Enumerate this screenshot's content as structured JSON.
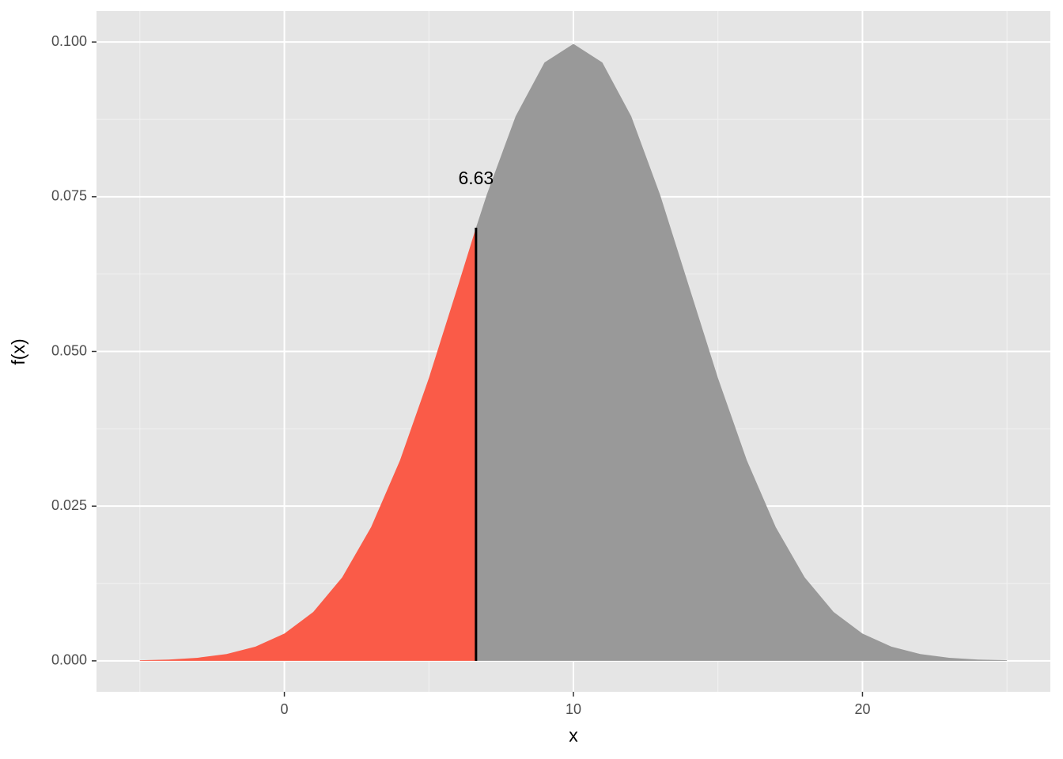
{
  "chart_data": {
    "type": "area",
    "x_label": "x",
    "y_label": "f(x)",
    "series": [
      {
        "color": "#fa5b48",
        "x": [
          -5,
          -4,
          -3,
          -2,
          -1,
          0,
          1,
          2,
          3,
          4,
          5,
          6,
          6.63
        ],
        "values": [
          0.0001,
          0.0002,
          0.0005,
          0.0011,
          0.0023,
          0.0044,
          0.0079,
          0.0135,
          0.0216,
          0.0324,
          0.0457,
          0.0605,
          0.07
        ]
      },
      {
        "color": "#999999",
        "x": [
          6.63,
          7,
          8,
          9,
          10,
          11,
          12,
          13,
          14,
          15,
          16,
          17,
          18,
          19,
          20,
          21,
          22,
          23,
          24,
          25
        ],
        "values": [
          0.07,
          0.0753,
          0.088,
          0.0967,
          0.0997,
          0.0967,
          0.088,
          0.0753,
          0.0605,
          0.0457,
          0.0324,
          0.0216,
          0.0135,
          0.0079,
          0.0044,
          0.0023,
          0.0011,
          0.0005,
          0.0002,
          0.0001
        ]
      }
    ],
    "cutoff": {
      "x": 6.63,
      "y": 0.07,
      "label": "6.63"
    },
    "xlim": [
      -6.5,
      26.5
    ],
    "xticks": [
      0,
      10,
      20
    ],
    "xminor_ticks": [
      -5,
      5,
      15,
      25
    ],
    "ylim": [
      -0.005,
      0.105
    ],
    "yticks": [
      {
        "value": 0,
        "label": "0.000"
      },
      {
        "value": 0.025,
        "label": "0.025"
      },
      {
        "value": 0.05,
        "label": "0.050"
      },
      {
        "value": 0.075,
        "label": "0.075"
      },
      {
        "value": 0.1,
        "label": "0.100"
      }
    ],
    "yminor_ticks": [
      0.0125,
      0.0375,
      0.0625,
      0.0875
    ],
    "grid": true
  }
}
